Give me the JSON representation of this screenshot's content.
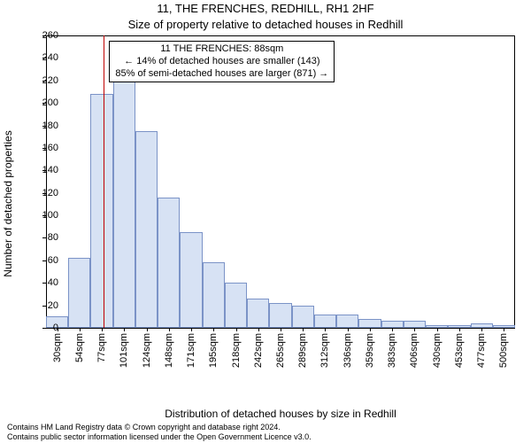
{
  "title": "11, THE FRENCHES, REDHILL, RH1 2HF",
  "subtitle": "Size of property relative to detached houses in Redhill",
  "ylabel": "Number of detached properties",
  "xlabel": "Distribution of detached houses by size in Redhill",
  "footer_line1": "Contains HM Land Registry data © Crown copyright and database right 2024.",
  "footer_line2": "Contains public sector information licensed under the Open Government Licence v3.0.",
  "chart": {
    "type": "histogram",
    "background_color": "#ffffff",
    "bar_fill": "#d7e2f4",
    "bar_stroke": "#7b93c7",
    "bar_stroke_width": 1,
    "grid_color": "#e0e0e0",
    "axis_color": "#000000",
    "marker_color": "#c00000",
    "ylim": [
      0,
      260
    ],
    "ytick_step": 20,
    "x_tick_labels": [
      "30sqm",
      "54sqm",
      "77sqm",
      "101sqm",
      "124sqm",
      "148sqm",
      "171sqm",
      "195sqm",
      "218sqm",
      "242sqm",
      "265sqm",
      "289sqm",
      "312sqm",
      "336sqm",
      "359sqm",
      "383sqm",
      "406sqm",
      "430sqm",
      "453sqm",
      "477sqm",
      "500sqm"
    ],
    "values": [
      10,
      62,
      208,
      220,
      175,
      116,
      85,
      58,
      40,
      26,
      22,
      20,
      12,
      12,
      8,
      6,
      6,
      2,
      2,
      4,
      2
    ],
    "marker_value": 88,
    "x_domain": [
      30,
      500
    ],
    "annotation": {
      "line1": "11 THE FRENCHES: 88sqm",
      "line2": "← 14% of detached houses are smaller (143)",
      "line3": "85% of semi-detached houses are larger (871) →"
    },
    "title_fontsize": 13,
    "label_fontsize": 12,
    "tick_fontsize": 11,
    "anno_fontsize": 11
  }
}
